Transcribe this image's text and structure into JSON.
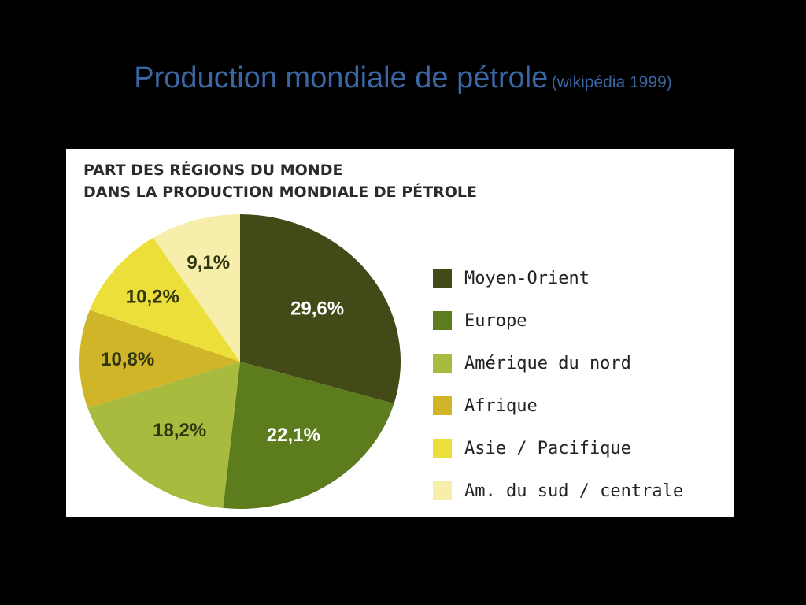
{
  "slide": {
    "title": "Production mondiale de pétrole",
    "subtitle": "(wikipédia 1999)"
  },
  "chart_data": {
    "type": "pie",
    "title_lines": [
      "PART DES RÉGIONS DU MONDE",
      "DANS LA PRODUCTION MONDIALE DE PÉTROLE"
    ],
    "slices": [
      {
        "name": "Moyen-Orient",
        "value": 29.6,
        "label": "29,6%",
        "color": "#434a17",
        "label_color": "#ffffff"
      },
      {
        "name": "Europe",
        "value": 22.1,
        "label": "22,1%",
        "color": "#5c7c1e",
        "label_color": "#ffffff"
      },
      {
        "name": "Amérique du nord",
        "value": 18.2,
        "label": "18,2%",
        "color": "#a9bb3f",
        "label_color": "#2f3610"
      },
      {
        "name": "Afrique",
        "value": 10.8,
        "label": "10,8%",
        "color": "#cfb527",
        "label_color": "#2f3610"
      },
      {
        "name": "Asie / Pacifique",
        "value": 10.2,
        "label": "10,2%",
        "color": "#ecdf3a",
        "label_color": "#2f3610"
      },
      {
        "name": "Am. du sud / centrale",
        "value": 9.1,
        "label": "9,1%",
        "color": "#f6eeaa",
        "label_color": "#2f3610"
      }
    ],
    "legend_position": "right",
    "start": "top, clockwise"
  }
}
